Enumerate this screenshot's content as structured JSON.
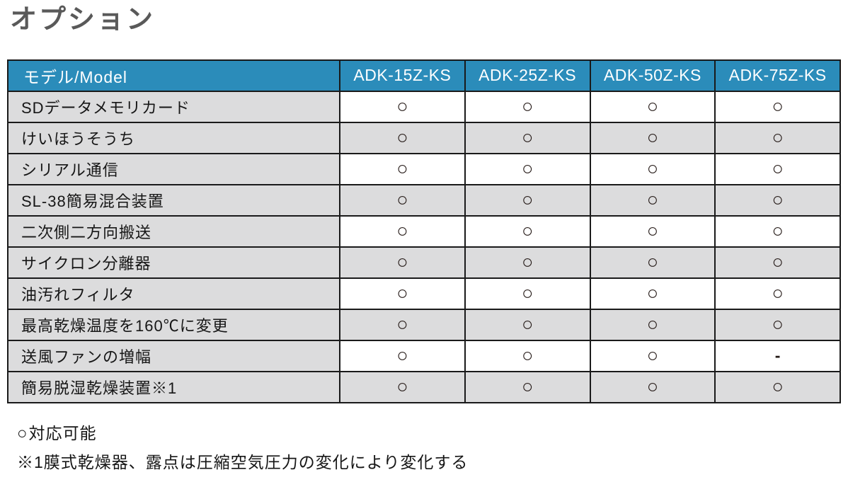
{
  "title": "オプション",
  "table": {
    "columns": [
      "モデル/Model",
      "ADK-15Z-KS",
      "ADK-25Z-KS",
      "ADK-50Z-KS",
      "ADK-75Z-KS"
    ],
    "rows": [
      {
        "label": "SDデータメモリカード",
        "values": [
          "○",
          "○",
          "○",
          "○"
        ]
      },
      {
        "label": "けいほうそうち",
        "values": [
          "○",
          "○",
          "○",
          "○"
        ]
      },
      {
        "label": "シリアル通信",
        "values": [
          "○",
          "○",
          "○",
          "○"
        ]
      },
      {
        "label": "SL-38簡易混合装置",
        "values": [
          "○",
          "○",
          "○",
          "○"
        ]
      },
      {
        "label": "二次側二方向搬送",
        "values": [
          "○",
          "○",
          "○",
          "○"
        ]
      },
      {
        "label": "サイクロン分離器",
        "values": [
          "○",
          "○",
          "○",
          "○"
        ]
      },
      {
        "label": "油汚れフィルタ",
        "values": [
          "○",
          "○",
          "○",
          "○"
        ]
      },
      {
        "label": "最高乾燥温度を160℃に変更",
        "values": [
          "○",
          "○",
          "○",
          "○"
        ]
      },
      {
        "label": "送風ファンの増幅",
        "values": [
          "○",
          "○",
          "○",
          "-"
        ]
      },
      {
        "label": "簡易脱湿乾燥装置※1",
        "values": [
          "○",
          "○",
          "○",
          "○"
        ]
      }
    ]
  },
  "legend": {
    "symbol": "○",
    "text": "対応可能"
  },
  "note": "※1膜式乾燥器、露点は圧縮空気圧力の変化により変化する",
  "colors": {
    "header_bg": "#2b8cba",
    "row_alt_bg": "#dcdcdd",
    "border": "#1a1a1a",
    "title_text": "#595959"
  }
}
